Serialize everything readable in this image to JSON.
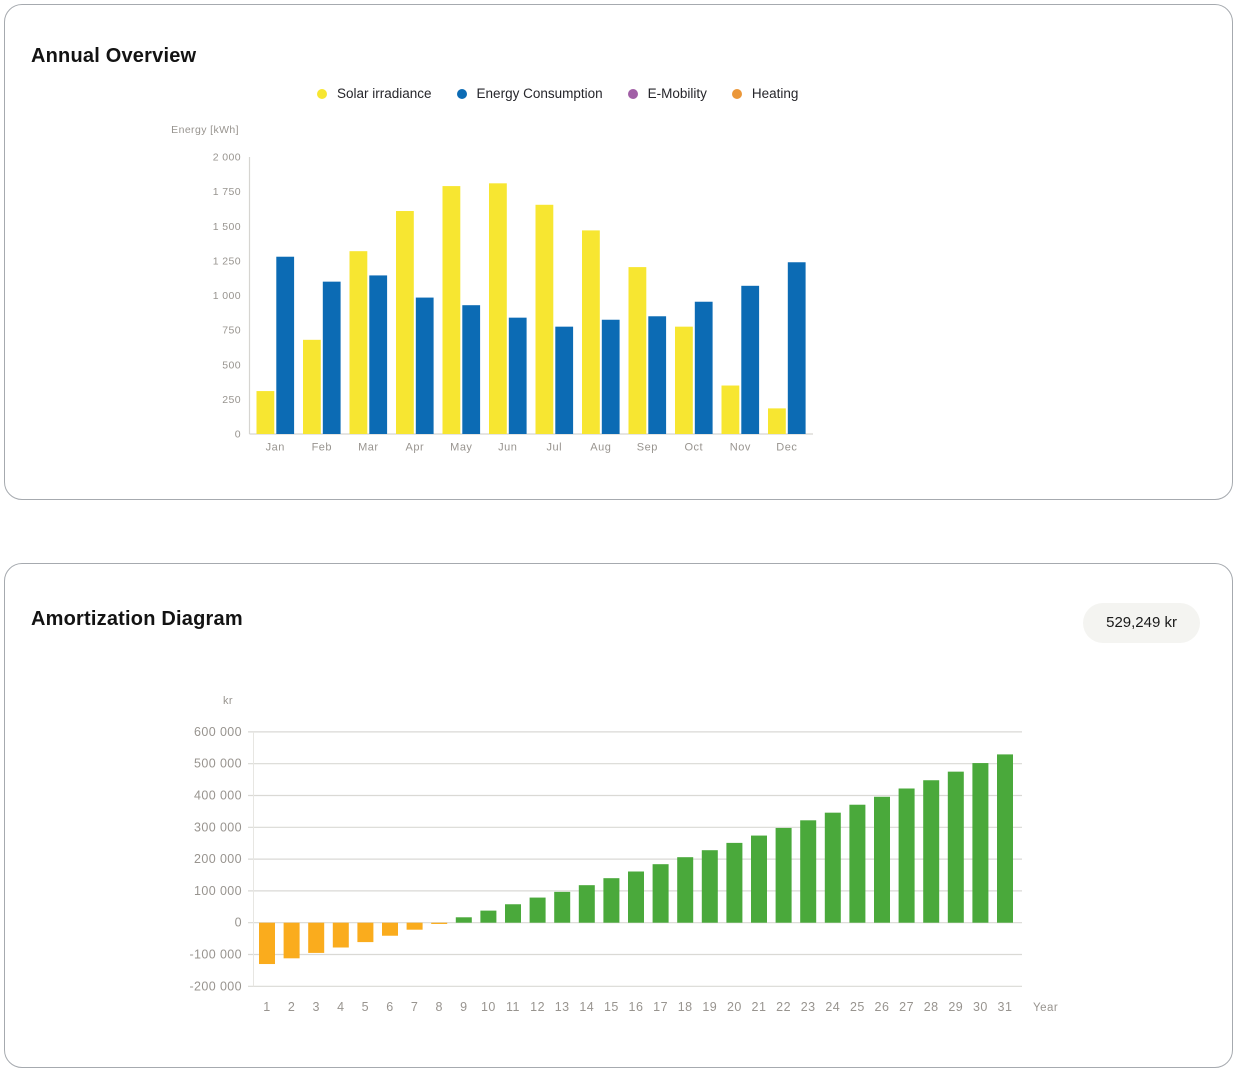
{
  "annual_overview": {
    "title": "Annual Overview",
    "legend": [
      {
        "label": "Solar irradiance",
        "color": "#F7E631"
      },
      {
        "label": "Energy Consumption",
        "color": "#0C6BB4"
      },
      {
        "label": "E-Mobility",
        "color": "#A15FA6"
      },
      {
        "label": "Heating",
        "color": "#EB9739"
      }
    ]
  },
  "amortization": {
    "title": "Amortization Diagram",
    "badge": "529,249 kr"
  },
  "colors": {
    "axis_text": "#98948F",
    "axis_line": "#D6D5D1",
    "grid_line": "#DAD9D5",
    "badge_background": "#F4F4F1",
    "positive_bar": "#4AA93B",
    "negative_bar": "#FAAC1D"
  },
  "chart_data": [
    {
      "type": "bar",
      "title": "Annual Overview",
      "categories": [
        "Jan",
        "Feb",
        "Mar",
        "Apr",
        "May",
        "Jun",
        "Jul",
        "Aug",
        "Sep",
        "Oct",
        "Nov",
        "Dec"
      ],
      "series": [
        {
          "name": "Solar irradiance",
          "color": "#F7E631",
          "values": [
            310,
            680,
            1320,
            1610,
            1790,
            1810,
            1655,
            1470,
            1205,
            775,
            350,
            185
          ]
        },
        {
          "name": "Energy Consumption",
          "color": "#0C6BB4",
          "values": [
            1280,
            1100,
            1145,
            985,
            930,
            840,
            775,
            825,
            850,
            955,
            1070,
            1240
          ]
        }
      ],
      "legend_only_series": [
        "E-Mobility",
        "Heating"
      ],
      "xlabel": "",
      "ylabel": "Energy [kWh]",
      "ylim": [
        0,
        2000
      ],
      "ytick_step": 250,
      "grid": false,
      "legend_position": "top"
    },
    {
      "type": "bar",
      "title": "Amortization Diagram",
      "categories": [
        "1",
        "2",
        "3",
        "4",
        "5",
        "6",
        "7",
        "8",
        "9",
        "10",
        "11",
        "12",
        "13",
        "14",
        "15",
        "16",
        "17",
        "18",
        "19",
        "20",
        "21",
        "22",
        "23",
        "24",
        "25",
        "26",
        "27",
        "28",
        "29",
        "30",
        "31"
      ],
      "values": [
        -130000,
        -112000,
        -95000,
        -78000,
        -61000,
        -41000,
        -22000,
        -4000,
        17000,
        38000,
        58000,
        79000,
        97000,
        118000,
        140000,
        161000,
        184000,
        206000,
        228000,
        251000,
        274000,
        298000,
        322000,
        346000,
        371000,
        396000,
        422000,
        448000,
        475000,
        502000,
        529249
      ],
      "positive_color": "#4AA93B",
      "negative_color": "#FAAC1D",
      "xlabel": "Year",
      "ylabel": "kr",
      "ylim": [
        -200000,
        600000
      ],
      "ytick_step": 100000,
      "grid": true,
      "final_value_label": "529,249 kr"
    }
  ]
}
